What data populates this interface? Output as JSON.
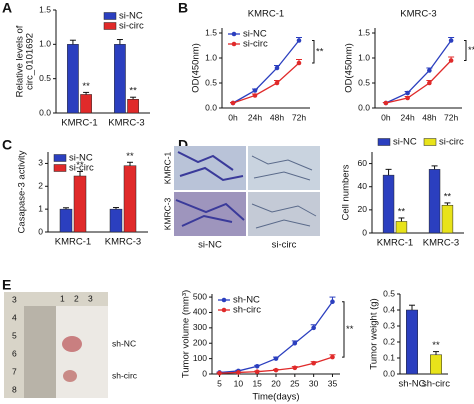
{
  "panel_labels": [
    "A",
    "B",
    "C",
    "D",
    "E"
  ],
  "micrograph_labels": {
    "rows": [
      "KMRC-1",
      "KMRC-3"
    ],
    "columns": [
      "si-NC",
      "si-circ"
    ]
  },
  "photo_labels": {
    "ruler": [
      "1",
      "2",
      "3",
      "3",
      "4",
      "5",
      "6",
      "7",
      "8"
    ],
    "tumors": [
      "sh-NC",
      "sh-circ"
    ]
  },
  "chart_data": [
    {
      "type": "bar",
      "ylabel": [
        "Relative levels of",
        "circ_0101692"
      ],
      "categories": [
        "KMRC-1",
        "KMRC-3"
      ],
      "series": [
        {
          "name": "si-NC",
          "color": "#2b3fbf",
          "values": [
            1.0,
            1.0
          ],
          "errors": [
            0.06,
            0.07
          ]
        },
        {
          "name": "si-circ",
          "color": "#e02a2a",
          "values": [
            0.27,
            0.2
          ],
          "errors": [
            0.03,
            0.03
          ]
        }
      ],
      "ylim": [
        0,
        1.5
      ],
      "yticks": [
        {
          "value": 0,
          "label": "0.0"
        },
        {
          "value": 0.5,
          "label": "0.5"
        },
        {
          "value": 1,
          "label": "1.0"
        },
        {
          "value": 1.5,
          "label": "1.5"
        }
      ],
      "legend": "upper right",
      "annotations": [
        "**",
        "**"
      ]
    },
    {
      "type": "line",
      "title": "KMRC-1",
      "ylabel": "OD(450nm)",
      "categories": [
        "0h",
        "24h",
        "48h",
        "72h"
      ],
      "series": [
        {
          "name": "si-NC",
          "color": "#2b3fbf",
          "values": [
            0.1,
            0.35,
            0.8,
            1.35
          ],
          "errors": [
            0.01,
            0.03,
            0.05,
            0.06
          ]
        },
        {
          "name": "si-circ",
          "color": "#e02a2a",
          "values": [
            0.1,
            0.25,
            0.5,
            0.9
          ],
          "errors": [
            0.01,
            0.03,
            0.05,
            0.07
          ]
        }
      ],
      "ylim": [
        0,
        1.6
      ],
      "yticks": [
        {
          "value": 0,
          "label": "0.0"
        },
        {
          "value": 0.5,
          "label": "0.5"
        },
        {
          "value": 1,
          "label": "1.0"
        },
        {
          "value": 1.5,
          "label": "1.5"
        }
      ],
      "legend": "upper left",
      "annotations": [
        "**"
      ]
    },
    {
      "type": "line",
      "title": "KMRC-3",
      "ylabel": "OD(450nm)",
      "categories": [
        "0h",
        "24h",
        "48h",
        "72h"
      ],
      "series": [
        {
          "name": "si-NC",
          "color": "#2b3fbf",
          "values": [
            0.1,
            0.3,
            0.75,
            1.35
          ],
          "errors": [
            0.01,
            0.03,
            0.05,
            0.06
          ]
        },
        {
          "name": "si-circ",
          "color": "#e02a2a",
          "values": [
            0.1,
            0.2,
            0.5,
            0.95
          ],
          "errors": [
            0.01,
            0.03,
            0.05,
            0.07
          ]
        }
      ],
      "ylim": [
        0,
        1.6
      ],
      "yticks": [
        {
          "value": 0,
          "label": "0.0"
        },
        {
          "value": 0.5,
          "label": "0.5"
        },
        {
          "value": 1,
          "label": "1.0"
        },
        {
          "value": 1.5,
          "label": "1.5"
        }
      ],
      "annotations": [
        "**"
      ]
    },
    {
      "type": "bar",
      "ylabel": "Casapase-3 activity",
      "categories": [
        "KMRC-1",
        "KMRC-3"
      ],
      "series": [
        {
          "name": "si-NC",
          "color": "#2b3fbf",
          "values": [
            1.0,
            1.0
          ],
          "errors": [
            0.06,
            0.07
          ]
        },
        {
          "name": "si-circ",
          "color": "#e02a2a",
          "values": [
            2.45,
            2.9
          ],
          "errors": [
            0.2,
            0.15
          ]
        }
      ],
      "ylim": [
        0,
        3.5
      ],
      "yticks": [
        0,
        1,
        2,
        3
      ],
      "legend": "upper left",
      "annotations": [
        "**",
        "**"
      ]
    },
    {
      "type": "bar",
      "ylabel": "Cell numbers",
      "categories": [
        "KMRC-1",
        "KMRC-3"
      ],
      "series": [
        {
          "name": "si-NC",
          "color": "#2b3fbf",
          "values": [
            50,
            55
          ],
          "errors": [
            5,
            3
          ]
        },
        {
          "name": "si-circ",
          "color": "#e8e31a",
          "values": [
            10,
            24
          ],
          "errors": [
            3,
            2
          ]
        }
      ],
      "ylim": [
        0,
        70
      ],
      "yticks": [
        0,
        20,
        40,
        60
      ],
      "legend": "top",
      "annotations": [
        "**",
        "**"
      ]
    },
    {
      "type": "line",
      "ylabel": "Tumor volume (mm³)",
      "xlabel": "Time(days)",
      "x": [
        5,
        10,
        15,
        20,
        25,
        30,
        35
      ],
      "series": [
        {
          "name": "sh-NC",
          "color": "#2b3fbf",
          "values": [
            10,
            20,
            50,
            100,
            200,
            300,
            470
          ],
          "errors": [
            2,
            4,
            6,
            10,
            15,
            20,
            30
          ]
        },
        {
          "name": "sh-circ",
          "color": "#e02a2a",
          "values": [
            5,
            10,
            15,
            25,
            40,
            70,
            110
          ],
          "errors": [
            2,
            3,
            4,
            5,
            8,
            10,
            15
          ]
        }
      ],
      "xlim": [
        3,
        37
      ],
      "xticks": [
        5,
        10,
        15,
        20,
        25,
        30,
        35
      ],
      "ylim": [
        0,
        520
      ],
      "yticks": [
        0,
        100,
        200,
        300,
        400,
        500
      ],
      "legend": "upper left",
      "annotations": [
        "**"
      ]
    },
    {
      "type": "bar",
      "ylabel": "Tumor weight (g)",
      "categories": [
        "sh-NC",
        "sh-circ"
      ],
      "values": [
        0.4,
        0.12
      ],
      "errors": [
        0.03,
        0.02
      ],
      "colors": [
        "#2b3fbf",
        "#e8e31a"
      ],
      "ylim": [
        0,
        0.5
      ],
      "yticks": [
        {
          "value": 0,
          "label": "0.0"
        },
        {
          "value": 0.1,
          "label": "0.1"
        },
        {
          "value": 0.2,
          "label": "0.2"
        },
        {
          "value": 0.3,
          "label": "0.3"
        },
        {
          "value": 0.4,
          "label": "0.4"
        },
        {
          "value": 0.5,
          "label": "0.5"
        }
      ],
      "annotations": [
        "**"
      ]
    }
  ]
}
